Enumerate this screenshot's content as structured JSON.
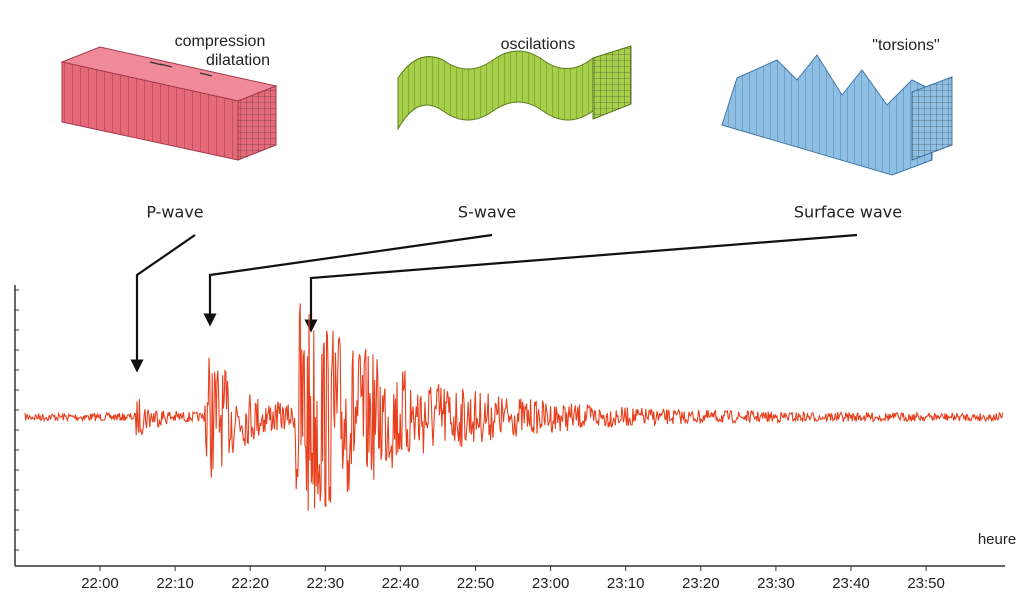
{
  "illustrations": [
    {
      "labels": [
        "compression",
        "dilatation"
      ]
    },
    {
      "labels": [
        "oscilations"
      ]
    },
    {
      "labels": [
        "\"torsions\""
      ]
    }
  ],
  "waves": [
    "P-wave",
    "S-wave",
    "Surface wave"
  ],
  "axis": {
    "label": "heure",
    "ticks": [
      "22:00",
      "22:10",
      "22:20",
      "22:30",
      "22:40",
      "22:50",
      "23:00",
      "23:10",
      "23:20",
      "23:30",
      "23:40",
      "23:50"
    ]
  }
}
